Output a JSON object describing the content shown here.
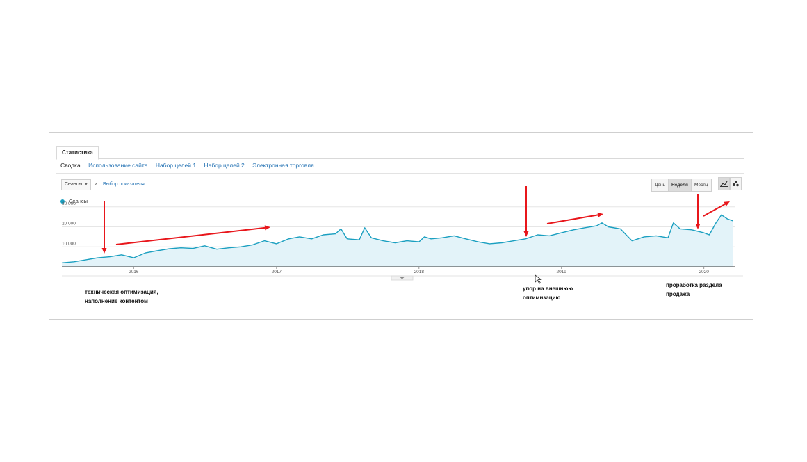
{
  "tabs": {
    "active": "Статистика"
  },
  "subnav": {
    "current": "Сводка",
    "links": [
      "Использование сайта",
      "Набор целей 1",
      "Набор целей 2",
      "Электронная торговля"
    ]
  },
  "controls": {
    "metric": "Сеансы",
    "and_label": "и",
    "choose_metric": "Выбор показателя",
    "periods": [
      "День",
      "Неделя",
      "Месяц"
    ],
    "active_period": "Неделя",
    "view_icons": [
      "line-chart-icon",
      "motion-chart-icon"
    ]
  },
  "legend": {
    "series": "Сеансы",
    "color": "#1a9fc0"
  },
  "chart_data": {
    "type": "area",
    "series": [
      {
        "name": "Сеансы",
        "color": "#1a9fc0",
        "points": [
          [
            "2015-07-01",
            2000
          ],
          [
            "2015-08-01",
            2500
          ],
          [
            "2015-09-01",
            3500
          ],
          [
            "2015-10-01",
            4500
          ],
          [
            "2015-11-01",
            5000
          ],
          [
            "2015-12-01",
            6000
          ],
          [
            "2016-01-01",
            4500
          ],
          [
            "2016-02-01",
            7000
          ],
          [
            "2016-03-01",
            8000
          ],
          [
            "2016-04-01",
            9000
          ],
          [
            "2016-05-01",
            9500
          ],
          [
            "2016-06-01",
            9200
          ],
          [
            "2016-07-01",
            10500
          ],
          [
            "2016-08-01",
            8800
          ],
          [
            "2016-09-01",
            9500
          ],
          [
            "2016-10-01",
            10000
          ],
          [
            "2016-11-01",
            11000
          ],
          [
            "2016-12-01",
            13000
          ],
          [
            "2017-01-01",
            11500
          ],
          [
            "2017-02-01",
            14000
          ],
          [
            "2017-03-01",
            15000
          ],
          [
            "2017-04-01",
            14000
          ],
          [
            "2017-05-01",
            16000
          ],
          [
            "2017-06-01",
            16500
          ],
          [
            "2017-06-15",
            19000
          ],
          [
            "2017-07-01",
            14000
          ],
          [
            "2017-08-01",
            13500
          ],
          [
            "2017-08-15",
            19500
          ],
          [
            "2017-09-01",
            14500
          ],
          [
            "2017-10-01",
            13000
          ],
          [
            "2017-11-01",
            12000
          ],
          [
            "2017-12-01",
            13000
          ],
          [
            "2018-01-01",
            12500
          ],
          [
            "2018-01-15",
            15000
          ],
          [
            "2018-02-01",
            14000
          ],
          [
            "2018-03-01",
            14500
          ],
          [
            "2018-04-01",
            15500
          ],
          [
            "2018-05-01",
            14000
          ],
          [
            "2018-06-01",
            12500
          ],
          [
            "2018-07-01",
            11500
          ],
          [
            "2018-08-01",
            12000
          ],
          [
            "2018-09-01",
            13000
          ],
          [
            "2018-10-01",
            14000
          ],
          [
            "2018-11-01",
            16000
          ],
          [
            "2018-12-01",
            15500
          ],
          [
            "2019-01-01",
            17000
          ],
          [
            "2019-02-01",
            18500
          ],
          [
            "2019-03-01",
            19500
          ],
          [
            "2019-04-01",
            20500
          ],
          [
            "2019-04-15",
            22000
          ],
          [
            "2019-05-01",
            20000
          ],
          [
            "2019-06-01",
            19000
          ],
          [
            "2019-07-01",
            13000
          ],
          [
            "2019-08-01",
            15000
          ],
          [
            "2019-09-01",
            15500
          ],
          [
            "2019-10-01",
            14500
          ],
          [
            "2019-10-15",
            22000
          ],
          [
            "2019-11-01",
            19000
          ],
          [
            "2019-12-01",
            18500
          ],
          [
            "2020-01-01",
            17000
          ],
          [
            "2020-01-15",
            16000
          ],
          [
            "2020-02-01",
            22000
          ],
          [
            "2020-02-15",
            26000
          ],
          [
            "2020-03-01",
            24000
          ],
          [
            "2020-03-15",
            23000
          ]
        ]
      }
    ],
    "y_ticks": [
      "30 000",
      "20 000",
      "10 000"
    ],
    "y_tick_values": [
      30000,
      20000,
      10000
    ],
    "ylim": [
      0,
      32000
    ],
    "x_ticks": [
      "2016",
      "2017",
      "2018",
      "2019",
      "2020"
    ],
    "xlim": [
      "2015-07-01",
      "2020-03-20"
    ],
    "grid": true
  },
  "annotations": {
    "left": "техническая оптимизация,\nнаполнение контентом",
    "middle": "упор на внешнюю\nоптимизацию",
    "right": "проработка раздела\nпродажа"
  },
  "arrow_color": "#e8161b"
}
